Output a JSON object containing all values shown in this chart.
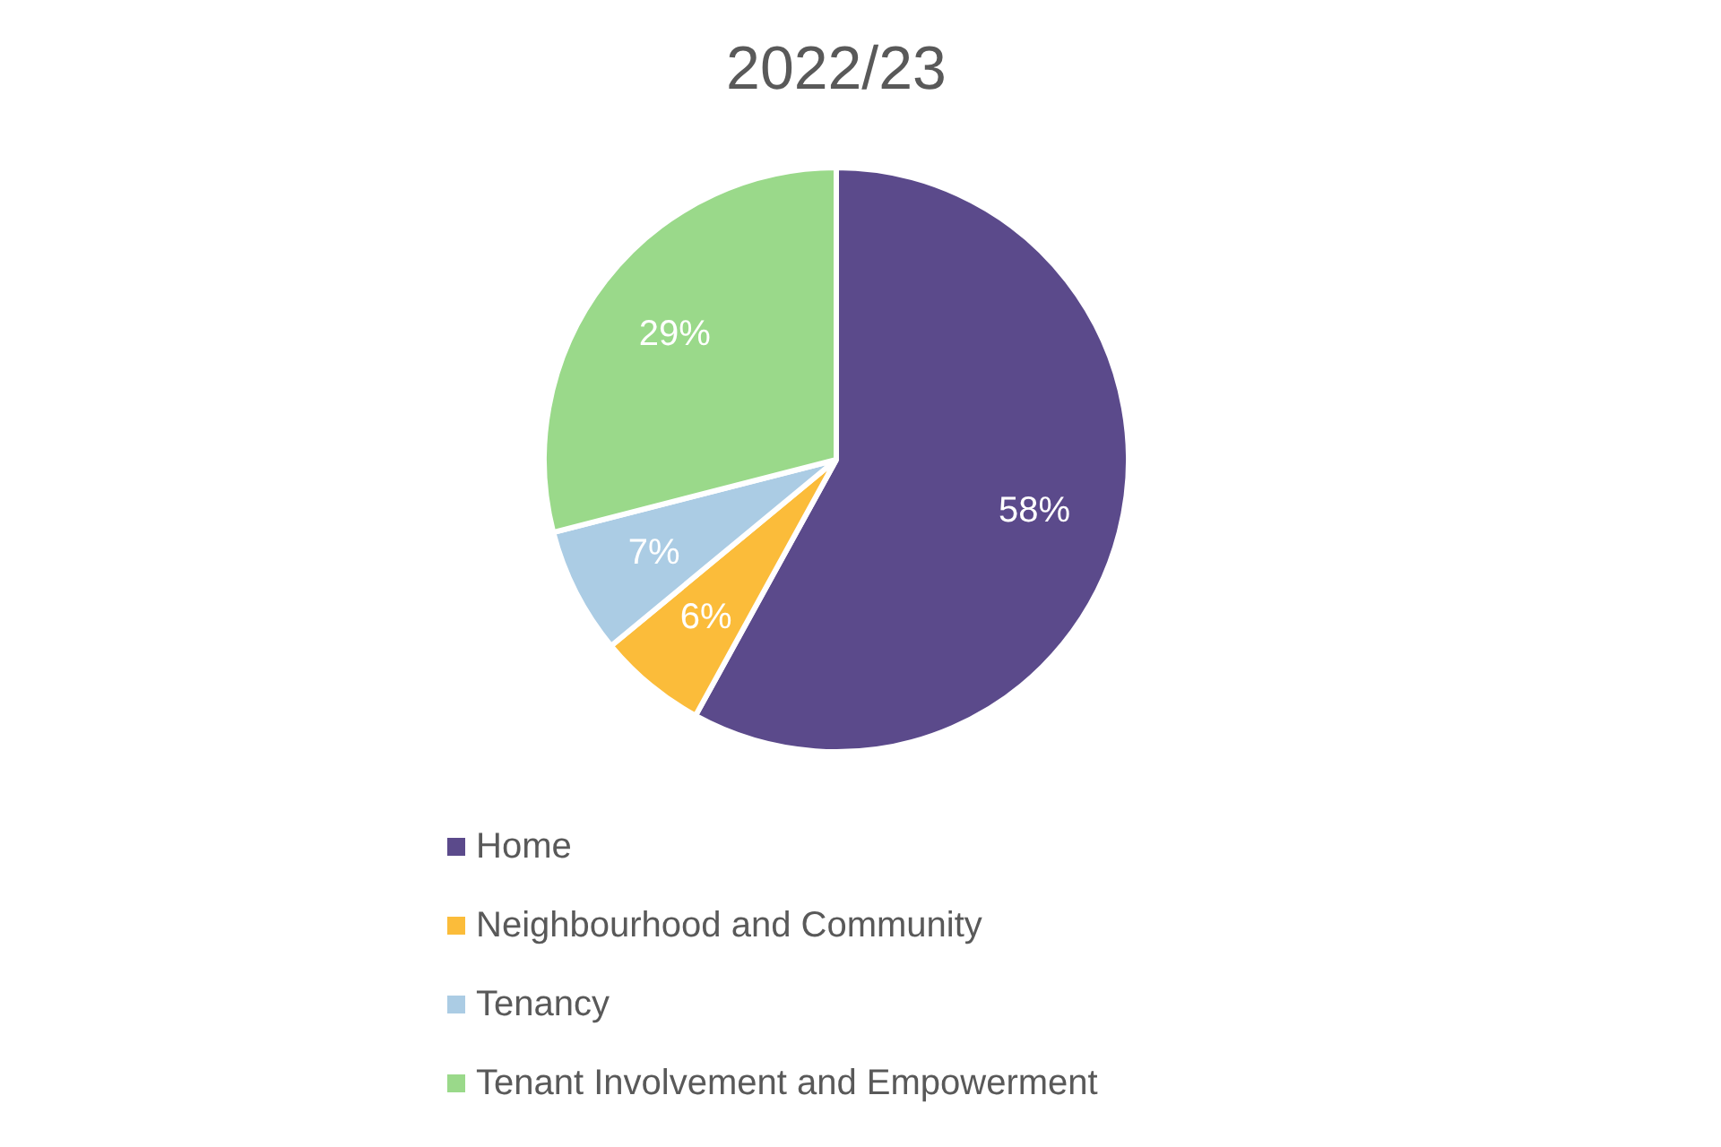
{
  "chart_data": {
    "type": "pie",
    "title": "2022/23",
    "categories": [
      "Home",
      "Neighbourhood and Community",
      "Tenancy",
      "Tenant Involvement and Empowerment"
    ],
    "values": [
      58,
      6,
      7,
      29
    ],
    "colors": [
      "#5b4a8b",
      "#fbbc3a",
      "#abcce4",
      "#9ad98a"
    ],
    "value_labels": [
      "58%",
      "6%",
      "7%",
      "29%"
    ],
    "legend": "bottom"
  }
}
